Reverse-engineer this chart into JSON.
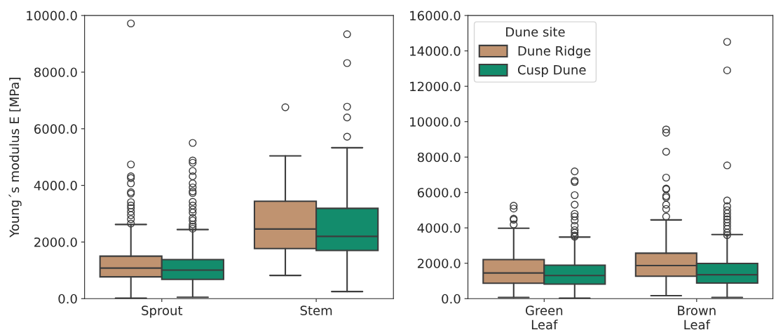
{
  "chart_data": [
    {
      "type": "box",
      "ylabel": "Young´s modulus E [MPa]",
      "categories": [
        "Sprout",
        "Stem"
      ],
      "ylim": [
        0,
        10000
      ],
      "yticks": [
        {
          "value": 0,
          "label": "0.0"
        },
        {
          "value": 2000,
          "label": "2000.0"
        },
        {
          "value": 4000,
          "label": "4000.0"
        },
        {
          "value": 6000,
          "label": "6000.0"
        },
        {
          "value": 8000,
          "label": "8000.0"
        },
        {
          "value": 10000,
          "label": "10000.0"
        }
      ],
      "grid": false,
      "legend": false,
      "series": [
        {
          "color": "#c09370",
          "boxes": [
            {
              "low": 20,
              "q1": 770,
              "median": 1080,
              "q3": 1500,
              "high": 2620,
              "outliers": [
                9720,
                4740,
                4320,
                4260,
                4070,
                3760,
                3710,
                3410,
                3290,
                3200,
                3070,
                2950,
                2810,
                2650
              ]
            },
            {
              "low": 820,
              "q1": 1770,
              "median": 2460,
              "q3": 3440,
              "high": 5040,
              "outliers": [
                6760
              ]
            }
          ]
        },
        {
          "color": "#138c6c",
          "boxes": [
            {
              "low": 50,
              "q1": 680,
              "median": 1010,
              "q3": 1380,
              "high": 2440,
              "outliers": [
                5500,
                4880,
                4800,
                4510,
                4320,
                4070,
                3930,
                3790,
                3730,
                3420,
                3290,
                3150,
                3040,
                2850,
                2760,
                2620,
                2540,
                2470
              ]
            },
            {
              "low": 250,
              "q1": 1700,
              "median": 2200,
              "q3": 3190,
              "high": 5330,
              "outliers": [
                5720,
                6400,
                6780,
                8320,
                9340
              ]
            }
          ]
        }
      ]
    },
    {
      "type": "box",
      "categories": [
        "Green\nLeaf",
        "Brown\nLeaf"
      ],
      "ylim": [
        0,
        16000
      ],
      "legend_title": "Dune site",
      "yticks": [
        {
          "value": 0,
          "label": "0.0"
        },
        {
          "value": 2000,
          "label": "2000.0"
        },
        {
          "value": 4000,
          "label": "4000.0"
        },
        {
          "value": 6000,
          "label": "6000.0"
        },
        {
          "value": 8000,
          "label": "8000.0"
        },
        {
          "value": 10000,
          "label": "10000.0"
        },
        {
          "value": 12000,
          "label": "12000.0"
        },
        {
          "value": 14000,
          "label": "14000.0"
        },
        {
          "value": 16000,
          "label": "16000.0"
        }
      ],
      "grid": false,
      "legend": "top left",
      "series": [
        {
          "name": "Dune Ridge",
          "color": "#c09370",
          "boxes": [
            {
              "low": 70,
              "q1": 870,
              "median": 1450,
              "q3": 2210,
              "high": 3980,
              "outliers": [
                5250,
                5090,
                4520,
                4460,
                4190
              ]
            },
            {
              "low": 170,
              "q1": 1270,
              "median": 1870,
              "q3": 2570,
              "high": 4450,
              "outliers": [
                9560,
                9380,
                8300,
                6840,
                6220,
                6180,
                5800,
                5720,
                5310,
                5070,
                4640
              ]
            }
          ]
        },
        {
          "name": "Cusp Dune",
          "color": "#138c6c",
          "boxes": [
            {
              "low": 30,
              "q1": 820,
              "median": 1310,
              "q3": 1890,
              "high": 3480,
              "outliers": [
                7190,
                6660,
                6590,
                5850,
                5310,
                4790,
                4640,
                4420,
                4120,
                3870,
                3730,
                3570,
                3500
              ]
            },
            {
              "low": 70,
              "q1": 880,
              "median": 1350,
              "q3": 1990,
              "high": 3620,
              "outliers": [
                14510,
                12900,
                7530,
                5550,
                5220,
                5000,
                4810,
                4630,
                4480,
                4310,
                4120,
                3940,
                3730,
                3590
              ]
            }
          ]
        }
      ]
    }
  ]
}
